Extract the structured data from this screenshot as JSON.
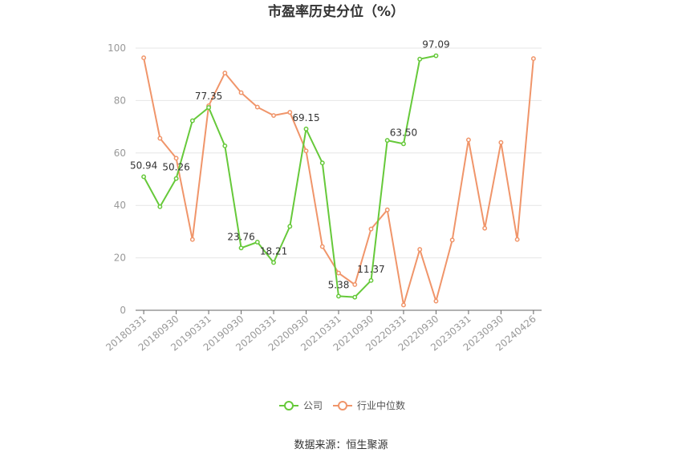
{
  "chart_data": {
    "type": "line",
    "title": "市盈率历史分位（%）",
    "source": "数据来源：恒生聚源",
    "ylim": [
      0,
      100
    ],
    "yticks": [
      0,
      20,
      40,
      60,
      80,
      100
    ],
    "grid": true,
    "legend_position": "bottom",
    "x": [
      "20180331",
      "20180630",
      "20180930",
      "20181231",
      "20190331",
      "20190630",
      "20190930",
      "20191231",
      "20200331",
      "20200630",
      "20200930",
      "20201231",
      "20210331",
      "20210630",
      "20210930",
      "20211231",
      "20220331",
      "20220630",
      "20220930",
      "20221231",
      "20230331",
      "20230630",
      "20230930",
      "20231231",
      "20240426"
    ],
    "x_tick_labels": [
      "20180331",
      "20180930",
      "20190331",
      "20190930",
      "20200331",
      "20200930",
      "20210331",
      "20210930",
      "20220331",
      "20220930",
      "20230331",
      "20230930",
      "20240426"
    ],
    "series": [
      {
        "name": "公司",
        "color": "#66c93a",
        "values": [
          50.94,
          39.5,
          50.26,
          72.3,
          77.35,
          62.7,
          23.76,
          26.0,
          18.21,
          32.0,
          69.15,
          56.2,
          5.38,
          5.0,
          11.37,
          64.8,
          63.5,
          95.8,
          97.09,
          null,
          null,
          null,
          null,
          null,
          null
        ],
        "labels": {
          "0": "50.94",
          "2": "50.26",
          "4": "77.35",
          "6": "23.76",
          "8": "18.21",
          "10": "69.15",
          "12": "5.38",
          "14": "11.37",
          "16": "63.50",
          "18": "97.09"
        }
      },
      {
        "name": "行业中位数",
        "color": "#f0956a",
        "values": [
          96.3,
          65.6,
          58.0,
          27.0,
          78.0,
          90.5,
          83.0,
          77.5,
          74.3,
          75.5,
          60.8,
          24.3,
          14.2,
          9.8,
          31.0,
          38.3,
          2.0,
          23.2,
          3.5,
          26.8,
          65.0,
          31.3,
          64.0,
          27.0,
          96.0
        ]
      }
    ]
  }
}
